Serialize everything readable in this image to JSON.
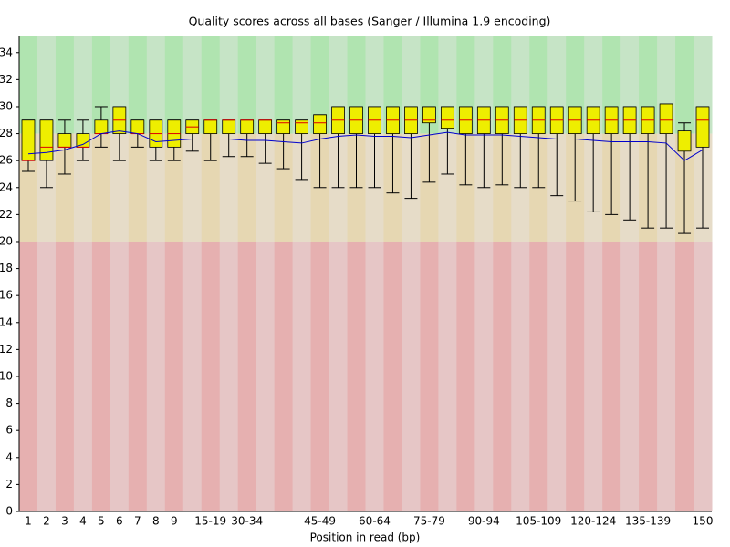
{
  "chart_data": {
    "type": "boxplot",
    "title": "Quality scores across all bases (Sanger / Illumina 1.9 encoding)",
    "x_label": "Position in read (bp)",
    "categories": [
      "1",
      "2",
      "3",
      "4",
      "5",
      "6",
      "7",
      "8",
      "9",
      null,
      "15-19",
      null,
      "30-34",
      null,
      null,
      null,
      "45-49",
      null,
      null,
      "60-64",
      null,
      null,
      "75-79",
      null,
      null,
      "90-94",
      null,
      null,
      "105-109",
      null,
      null,
      "120-124",
      null,
      null,
      "135-139",
      null,
      null,
      "150"
    ],
    "whisker_low": [
      25.2,
      24,
      25,
      26,
      27,
      26,
      27,
      26,
      26,
      26.7,
      26,
      26.3,
      26.3,
      25.8,
      25.4,
      24.6,
      24,
      24,
      24,
      24,
      23.6,
      23.2,
      24.4,
      25,
      24.2,
      24,
      24.2,
      24,
      24,
      23.4,
      23,
      22.2,
      22,
      21.6,
      21,
      21,
      20.6,
      21
    ],
    "q1": [
      26,
      26,
      27,
      27,
      28,
      28,
      28,
      27,
      27,
      28,
      28,
      28,
      28,
      28,
      28,
      28,
      28,
      28,
      28,
      28,
      28,
      28,
      28.8,
      28.4,
      28,
      28,
      28,
      28,
      28,
      28,
      28,
      28,
      28,
      28,
      28,
      28,
      26.7,
      27
    ],
    "median": [
      26,
      27,
      27,
      27,
      28,
      29,
      28,
      28,
      28,
      28.5,
      29,
      29,
      29,
      29,
      28.8,
      28.8,
      28.8,
      29,
      29,
      29,
      29,
      29,
      29,
      29,
      29,
      29,
      29,
      29,
      29,
      29,
      29,
      29,
      29,
      29,
      29,
      29,
      27.6,
      29
    ],
    "q3": [
      29,
      29,
      28,
      28,
      29,
      30,
      29,
      29,
      29,
      29,
      29,
      29,
      29,
      29,
      29,
      29,
      29.4,
      30,
      30,
      30,
      30,
      30,
      30,
      30,
      30,
      30,
      30,
      30,
      30,
      30,
      30,
      30,
      30,
      30,
      30,
      30.2,
      28.2,
      30
    ],
    "whisker_high": [
      29,
      29,
      29,
      29,
      30,
      30,
      29,
      29,
      29,
      29,
      29,
      29,
      29,
      29,
      29,
      29,
      29.4,
      30,
      30,
      30,
      30,
      30,
      30,
      30,
      30,
      30,
      30,
      30,
      30,
      30,
      30,
      30,
      30,
      30,
      30,
      30.2,
      28.8,
      30
    ],
    "mean": [
      26.5,
      26.6,
      26.8,
      27.2,
      28,
      28.2,
      28,
      27.4,
      27.5,
      27.6,
      27.6,
      27.6,
      27.5,
      27.5,
      27.4,
      27.3,
      27.6,
      27.8,
      27.9,
      27.8,
      27.8,
      27.7,
      27.9,
      28.1,
      27.9,
      27.9,
      27.9,
      27.8,
      27.7,
      27.6,
      27.6,
      27.5,
      27.4,
      27.4,
      27.4,
      27.3,
      26,
      26.8
    ],
    "box_color": "#eeee00",
    "median_color": "#dd0000",
    "mean_color": "#0000cc",
    "bands": [
      {
        "from": 28,
        "to": 35.2,
        "color": "#b0e4b0",
        "alt_color": "#c6e4c6"
      },
      {
        "from": 20,
        "to": 28,
        "color": "#e6d7b2",
        "alt_color": "#e6dcc8"
      },
      {
        "from": 0,
        "to": 20,
        "color": "#e6b0b0",
        "alt_color": "#e6c6c6"
      }
    ],
    "ylim": [
      0,
      35.2
    ],
    "yticks": [
      0,
      2,
      4,
      6,
      8,
      10,
      12,
      14,
      16,
      18,
      20,
      22,
      24,
      26,
      28,
      30,
      32,
      34
    ]
  }
}
